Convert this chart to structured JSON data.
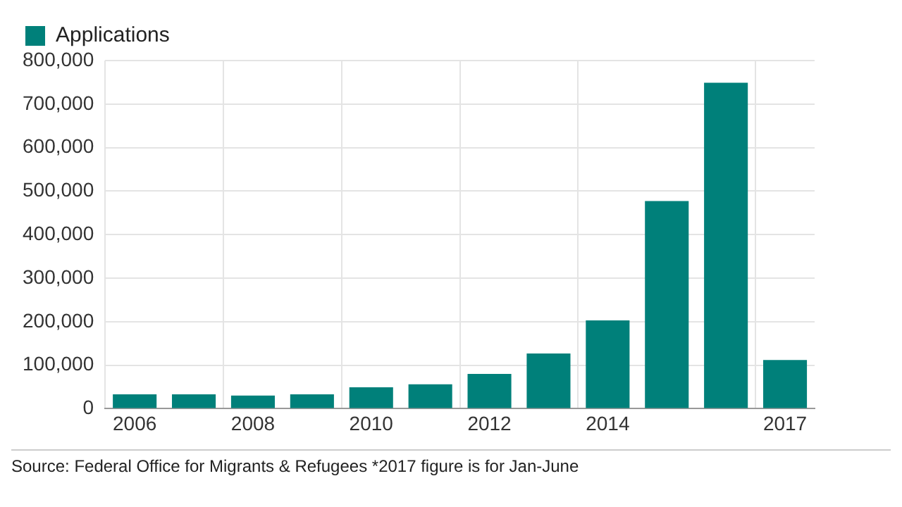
{
  "chart_data": {
    "type": "bar",
    "categories": [
      "2006",
      null,
      "2008",
      null,
      "2010",
      null,
      "2012",
      null,
      "2014",
      null,
      null,
      "2017"
    ],
    "series": [
      {
        "name": "Applications",
        "color": "#00807a",
        "values": [
          33000,
          33000,
          30000,
          33000,
          49000,
          56000,
          80000,
          127000,
          203000,
          477000,
          749000,
          112000
        ]
      }
    ],
    "ylim": [
      0,
      800000
    ],
    "yticks": [
      {
        "value": 0,
        "label": "0"
      },
      {
        "value": 100000,
        "label": "100,000"
      },
      {
        "value": 200000,
        "label": "200,000"
      },
      {
        "value": 300000,
        "label": "300,000"
      },
      {
        "value": 400000,
        "label": "400,000"
      },
      {
        "value": 500000,
        "label": "500,000"
      },
      {
        "value": 600000,
        "label": "600,000"
      },
      {
        "value": 700000,
        "label": "700,000"
      },
      {
        "value": 800000,
        "label": "800,000"
      }
    ],
    "grid": true,
    "legend": "top left",
    "annotations": [
      "Source: Federal Office for Migrants & Refugees *2017 figure is for Jan-June"
    ]
  }
}
